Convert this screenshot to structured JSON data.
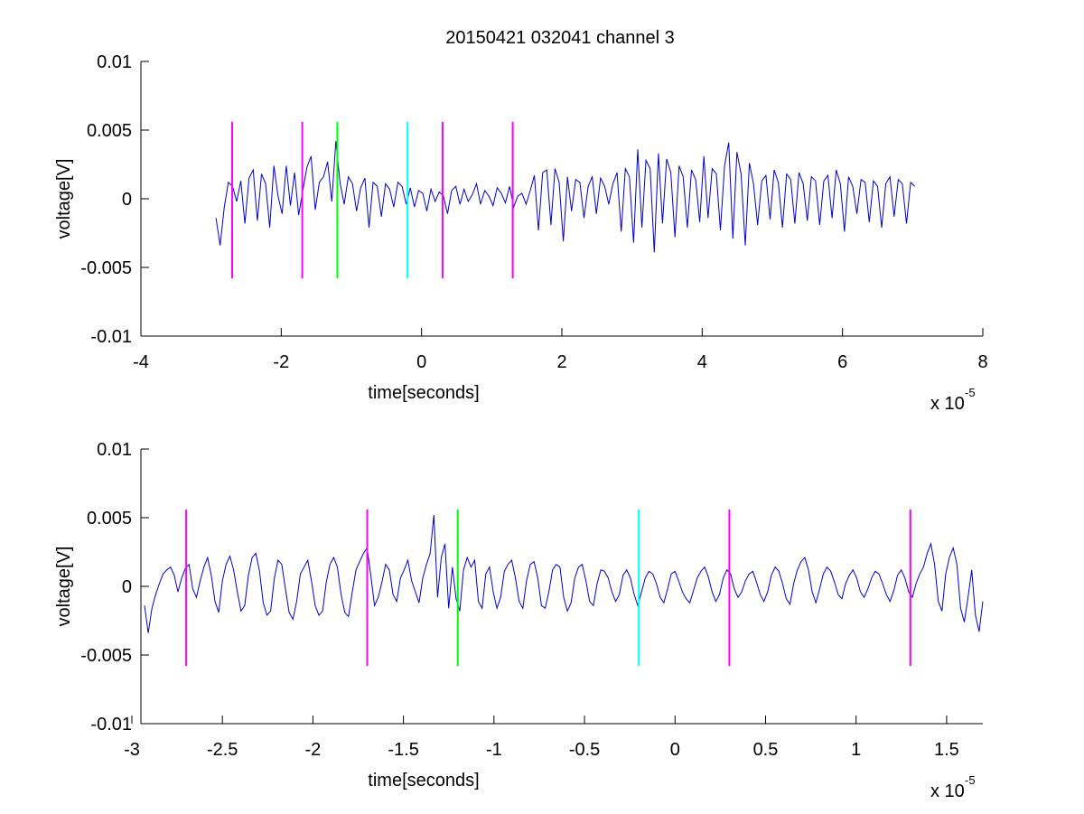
{
  "figure": {
    "title": "20150421 032041 channel 3"
  },
  "chart_data": [
    {
      "type": "line",
      "title": "20150421 032041 channel 3",
      "xlabel": "time[seconds]",
      "ylabel": "voltage[V]",
      "x_exponent_label": {
        "base": "x 10",
        "power": "-5"
      },
      "xlim": [
        -4e-05,
        8e-05
      ],
      "ylim": [
        -0.01,
        0.01
      ],
      "x_ticks": [
        -4,
        -2,
        0,
        2,
        4,
        6,
        8
      ],
      "x_tick_labels": [
        "-4",
        "-2",
        "0",
        "2",
        "4",
        "6",
        "8"
      ],
      "y_ticks": [
        -0.01,
        -0.005,
        0,
        0.005,
        0.01
      ],
      "y_tick_labels": [
        "-0.01",
        "-0.005",
        "0",
        "0.005",
        "0.01"
      ],
      "grid": false,
      "series": [
        {
          "color": "#0000cc",
          "x_range": [
            -2.93e-05,
            7.03e-05
          ],
          "samples": [
            -0.0014,
            -0.0034,
            -0.0006,
            0.0012,
            0.0009,
            -0.0002,
            0.0013,
            -0.0018,
            0.0015,
            0.0021,
            -0.0016,
            0.0018,
            0.0011,
            -0.0021,
            0.0024,
            0.0002,
            -0.0011,
            0.0024,
            -0.0005,
            0.0019,
            -0.0012,
            0.0006,
            0.0023,
            0.0031,
            -0.0008,
            0.0012,
            0.0016,
            0.0027,
            -0.0002,
            0.0042,
            0.0012,
            -0.0004,
            0.0016,
            0.0011,
            -0.0009,
            0.0008,
            0.0015,
            -0.0021,
            0.0012,
            0.0009,
            -0.0013,
            0.0011,
            0.0007,
            -0.0006,
            0.0012,
            0.0009,
            -0.0004,
            0.0008,
            -0.0006,
            0.0006,
            0.0004,
            -0.0009,
            0.0007,
            -0.0002,
            0.0005,
            0.0002,
            -0.0011,
            0.0006,
            0.0009,
            -0.0004,
            0.0007,
            -0.0002,
            0.0003,
            0.0011,
            -0.0004,
            0.0006,
            0.0002,
            -0.0005,
            0.0008,
            0.0004,
            -0.0003,
            0.0009,
            -0.0006,
            0.0002,
            0.0004,
            -0.0004,
            0.0006,
            0.0017,
            -0.0023,
            0.0019,
            0.0021,
            -0.0019,
            0.0022,
            0.0012,
            -0.0031,
            0.0016,
            -0.0009,
            0.0014,
            0.0012,
            -0.0014,
            0.0009,
            0.0016,
            -0.0011,
            0.0015,
            0.0009,
            -0.0004,
            0.0011,
            0.0019,
            -0.0024,
            0.0022,
            0.0016,
            -0.0032,
            0.0036,
            -0.0021,
            0.0028,
            0.0022,
            -0.0039,
            0.0033,
            -0.0018,
            0.0029,
            0.0019,
            -0.0028,
            0.0024,
            0.0016,
            -0.0021,
            0.0021,
            0.0014,
            -0.0017,
            0.0031,
            -0.0014,
            0.0022,
            0.0018,
            -0.0023,
            0.0024,
            0.0041,
            -0.0029,
            0.0034,
            0.0018,
            -0.0034,
            0.0026,
            0.0011,
            -0.0019,
            0.0013,
            0.0017,
            -0.0015,
            0.0021,
            0.0012,
            -0.0021,
            0.0018,
            0.0014,
            -0.0018,
            0.0019,
            0.0011,
            -0.0016,
            0.0016,
            0.0013,
            -0.0019,
            0.0013,
            0.0017,
            -0.0014,
            0.0021,
            0.0011,
            -0.0024,
            0.0016,
            0.0009,
            -0.0011,
            0.0014,
            0.0012,
            -0.0017,
            0.0013,
            0.0009,
            -0.0021,
            0.0011,
            0.0016,
            -0.0013,
            0.0014,
            0.0011,
            -0.0018,
            0.0012,
            0.0009
          ]
        }
      ],
      "markers": [
        {
          "x": -2.7e-05,
          "color": "#ff00ff",
          "y_range": [
            -0.0058,
            0.0056
          ]
        },
        {
          "x": -1.7e-05,
          "color": "#ff00ff",
          "y_range": [
            -0.0058,
            0.0056
          ]
        },
        {
          "x": -1.2e-05,
          "color": "#00ff00",
          "y_range": [
            -0.0058,
            0.0056
          ]
        },
        {
          "x": -2e-06,
          "color": "#00ffff",
          "y_range": [
            -0.0058,
            0.0056
          ]
        },
        {
          "x": 3e-06,
          "color": "#ff00ff",
          "y_range": [
            -0.0058,
            0.0056
          ]
        },
        {
          "x": 1.3e-05,
          "color": "#ff00ff",
          "y_range": [
            -0.0058,
            0.0056
          ]
        }
      ]
    },
    {
      "type": "line",
      "title": "",
      "xlabel": "time[seconds]",
      "ylabel": "voltage[V]",
      "x_exponent_label": {
        "base": "x 10",
        "power": "-5"
      },
      "xlim": [
        -2.95e-05,
        1.7e-05
      ],
      "ylim": [
        -0.01,
        0.01
      ],
      "x_ticks": [
        -3,
        -2.5,
        -2,
        -1.5,
        -1,
        -0.5,
        0,
        0.5,
        1,
        1.5
      ],
      "x_tick_labels": [
        "-3",
        "-2.5",
        "-2",
        "-1.5",
        "-1",
        "-0.5",
        "0",
        "0.5",
        "1",
        "1.5"
      ],
      "y_ticks": [
        -0.01,
        -0.005,
        0,
        0.005,
        0.01
      ],
      "y_tick_labels": [
        "-0.01",
        "-0.005",
        "0",
        "0.005",
        "0.01"
      ],
      "grid": false,
      "series": [
        {
          "color": "#0000cc",
          "x_range": [
            -2.93e-05,
            1.7e-05
          ],
          "samples": [
            -0.0014,
            -0.0034,
            -0.0016,
            -0.0006,
            0.0002,
            0.0009,
            0.0012,
            0.0014,
            0.0008,
            -0.0004,
            0.0006,
            0.0013,
            0.0016,
            -0.0002,
            -0.0008,
            0.0004,
            0.0014,
            0.0021,
            0.0008,
            -0.0011,
            -0.0019,
            0.0004,
            0.0016,
            0.0022,
            0.0012,
            -0.0004,
            -0.0018,
            -0.0014,
            0.0008,
            0.0021,
            0.0024,
            0.0011,
            -0.0012,
            -0.0021,
            -0.0018,
            0.0006,
            0.0019,
            0.0016,
            -0.0002,
            -0.0019,
            -0.0024,
            -0.0011,
            0.0009,
            0.0014,
            0.0019,
            0.0004,
            -0.0014,
            -0.0021,
            -0.0018,
            0.0003,
            0.0016,
            0.0021,
            0.0014,
            -0.0006,
            -0.0019,
            -0.0022,
            -0.0004,
            0.0012,
            0.0018,
            0.0024,
            0.0028,
            0.0008,
            -0.0014,
            -0.0008,
            0.0003,
            0.0016,
            0.0012,
            -0.0006,
            -0.0011,
            0.0006,
            0.0012,
            0.0019,
            0.0004,
            -0.0004,
            -0.0012,
            0.0006,
            0.0016,
            0.0024,
            0.0052,
            -0.0008,
            0.0021,
            0.0031,
            -0.0016,
            0.0014,
            -0.0009,
            -0.0018,
            0.0012,
            0.0021,
            0.0014,
            0.0019,
            -0.0011,
            -0.0016,
            0.0009,
            0.0014,
            -0.0004,
            -0.0016,
            -0.0008,
            0.0011,
            0.0016,
            0.0019,
            0.0006,
            -0.0011,
            -0.0016,
            0.0004,
            0.0016,
            0.0018,
            0.0006,
            -0.0014,
            -0.0016,
            -0.0004,
            0.0012,
            0.0016,
            0.0014,
            -0.0008,
            -0.0018,
            -0.0012,
            0.0006,
            0.0014,
            0.0016,
            0.0004,
            -0.0011,
            -0.0014,
            0.0002,
            0.0012,
            0.0011,
            0.0006,
            -0.0004,
            -0.0011,
            -0.0006,
            0.0008,
            0.0012,
            0.0006,
            -0.0006,
            -0.0014,
            -0.0004,
            0.0006,
            0.0011,
            0.0009,
            0.0002,
            -0.0008,
            -0.0012,
            -0.0002,
            0.0009,
            0.0011,
            0.0004,
            -0.0004,
            -0.0009,
            -0.0012,
            -0.0003,
            0.0006,
            0.0011,
            0.0014,
            0.0007,
            -0.0004,
            -0.0011,
            -0.0006,
            0.0006,
            0.0012,
            0.0009,
            -0.0002,
            -0.0008,
            -0.0004,
            0.0004,
            0.0009,
            0.0011,
            0.0003,
            -0.0006,
            -0.0011,
            -0.0004,
            0.0008,
            0.0014,
            0.0011,
            0.0002,
            -0.0009,
            -0.0013,
            0.0002,
            0.0012,
            0.0018,
            0.0021,
            0.0012,
            -0.0004,
            -0.0012,
            -0.0002,
            0.0009,
            0.0014,
            0.0011,
            0.0003,
            -0.0006,
            -0.0009,
            0.0002,
            0.0008,
            0.0012,
            0.0006,
            -0.0004,
            -0.0008,
            -0.0002,
            0.0006,
            0.0011,
            0.0009,
            0.0002,
            -0.0006,
            -0.0011,
            -0.0003,
            0.0008,
            0.0012,
            0.0006,
            -0.0004,
            -0.0008,
            0.0002,
            0.0009,
            0.0014,
            0.0024,
            0.0031,
            0.0016,
            -0.0011,
            -0.0018,
            0.0009,
            0.0021,
            0.0028,
            0.0016,
            -0.0016,
            -0.0026,
            -0.0008,
            0.0012,
            -0.0021,
            -0.0033,
            -0.0011
          ]
        }
      ],
      "markers": [
        {
          "x": -2.7e-05,
          "color": "#ff00ff",
          "y_range": [
            -0.0058,
            0.0056
          ]
        },
        {
          "x": -1.7e-05,
          "color": "#ff00ff",
          "y_range": [
            -0.0058,
            0.0056
          ]
        },
        {
          "x": -1.2e-05,
          "color": "#00ff00",
          "y_range": [
            -0.0058,
            0.0056
          ]
        },
        {
          "x": -2e-06,
          "color": "#00ffff",
          "y_range": [
            -0.0058,
            0.0056
          ]
        },
        {
          "x": 3e-06,
          "color": "#ff00ff",
          "y_range": [
            -0.0058,
            0.0056
          ]
        },
        {
          "x": 1.3e-05,
          "color": "#ff00ff",
          "y_range": [
            -0.0058,
            0.0056
          ]
        }
      ]
    }
  ]
}
